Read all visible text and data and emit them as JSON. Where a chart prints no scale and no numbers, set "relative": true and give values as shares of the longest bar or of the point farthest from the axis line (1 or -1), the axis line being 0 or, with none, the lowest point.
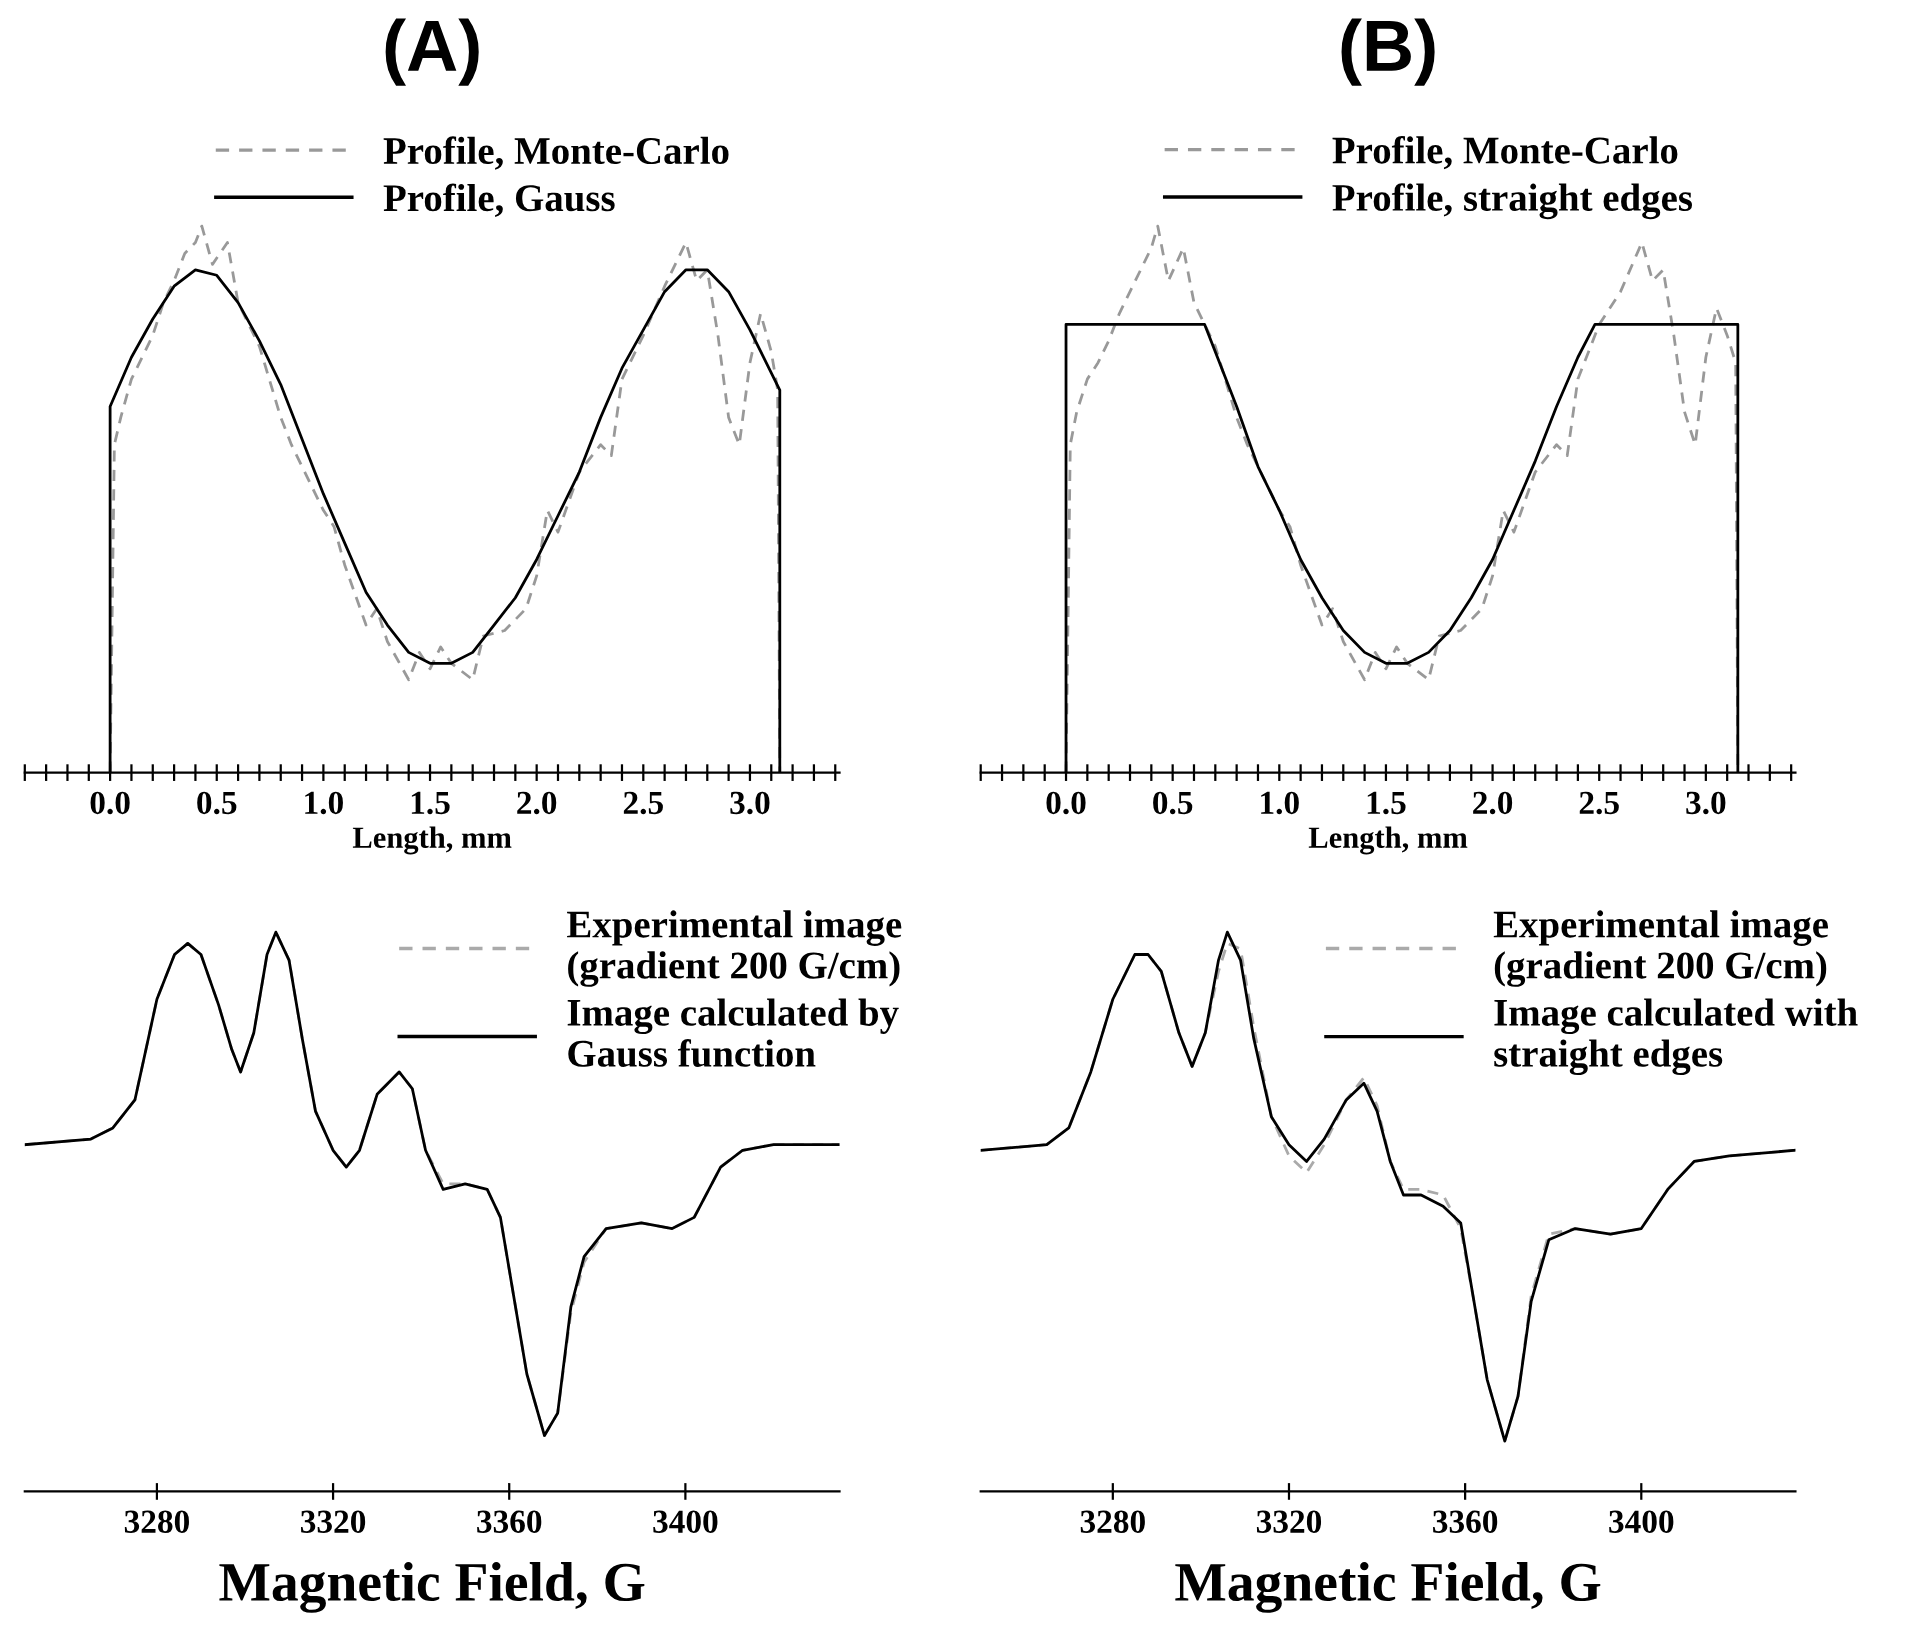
{
  "chart_data": [
    {
      "type": "line",
      "title": "(A)",
      "xlabel": "Length, mm",
      "relative": true,
      "tick_labels": "x",
      "legend": "top",
      "xlim": [
        -0.4,
        3.42
      ],
      "xticks": [
        {
          "value": -0.4,
          "label": null
        },
        {
          "value": -0.3,
          "label": null
        },
        {
          "value": -0.2,
          "label": null
        },
        {
          "value": -0.1,
          "label": null
        },
        {
          "value": 0,
          "label": "0.0"
        },
        {
          "value": 0.1,
          "label": null
        },
        {
          "value": 0.2,
          "label": null
        },
        {
          "value": 0.3,
          "label": null
        },
        {
          "value": 0.4,
          "label": null
        },
        {
          "value": 0.5,
          "label": "0.5"
        },
        {
          "value": 0.6,
          "label": null
        },
        {
          "value": 0.7,
          "label": null
        },
        {
          "value": 0.8,
          "label": null
        },
        {
          "value": 0.9,
          "label": null
        },
        {
          "value": 1.0,
          "label": "1.0"
        },
        {
          "value": 1.1,
          "label": null
        },
        {
          "value": 1.2,
          "label": null
        },
        {
          "value": 1.3,
          "label": null
        },
        {
          "value": 1.4,
          "label": null
        },
        {
          "value": 1.5,
          "label": "1.5"
        },
        {
          "value": 1.6,
          "label": null
        },
        {
          "value": 1.7,
          "label": null
        },
        {
          "value": 1.8,
          "label": null
        },
        {
          "value": 1.9,
          "label": null
        },
        {
          "value": 2.0,
          "label": "2.0"
        },
        {
          "value": 2.1,
          "label": null
        },
        {
          "value": 2.2,
          "label": null
        },
        {
          "value": 2.3,
          "label": null
        },
        {
          "value": 2.4,
          "label": null
        },
        {
          "value": 2.5,
          "label": "2.5"
        },
        {
          "value": 2.6,
          "label": null
        },
        {
          "value": 2.7,
          "label": null
        },
        {
          "value": 2.8,
          "label": null
        },
        {
          "value": 2.9,
          "label": null
        },
        {
          "value": 3.0,
          "label": "3.0"
        },
        {
          "value": 3.1,
          "label": null
        },
        {
          "value": 3.2,
          "label": null
        },
        {
          "value": 3.3,
          "label": null
        },
        {
          "value": 3.4,
          "label": null
        }
      ],
      "series": [
        {
          "name": "Profile, Monte-Carlo",
          "color": "#999999",
          "line_style": "dashed",
          "x": [
            0,
            0.02,
            0.05,
            0.1,
            0.15,
            0.2,
            0.25,
            0.3,
            0.35,
            0.4,
            0.43,
            0.48,
            0.55,
            0.6,
            0.7,
            0.8,
            0.85,
            0.9,
            1.0,
            1.05,
            1.1,
            1.2,
            1.25,
            1.3,
            1.4,
            1.45,
            1.5,
            1.55,
            1.6,
            1.7,
            1.75,
            1.85,
            1.95,
            2.0,
            2.05,
            2.1,
            2.2,
            2.3,
            2.35,
            2.4,
            2.5,
            2.6,
            2.7,
            2.75,
            2.8,
            2.85,
            2.9,
            2.95,
            3.0,
            3.05,
            3.1,
            3.13,
            3.14
          ],
          "values": [
            0,
            0.6,
            0.65,
            0.72,
            0.76,
            0.8,
            0.86,
            0.9,
            0.95,
            0.97,
            1.0,
            0.93,
            0.97,
            0.86,
            0.78,
            0.65,
            0.6,
            0.56,
            0.48,
            0.45,
            0.38,
            0.27,
            0.3,
            0.24,
            0.17,
            0.22,
            0.19,
            0.23,
            0.2,
            0.17,
            0.25,
            0.26,
            0.3,
            0.36,
            0.48,
            0.44,
            0.55,
            0.6,
            0.58,
            0.72,
            0.8,
            0.89,
            0.97,
            0.9,
            0.92,
            0.8,
            0.65,
            0.6,
            0.75,
            0.84,
            0.77,
            0.7,
            0
          ]
        },
        {
          "name": "Profile, Gauss",
          "color": "#000000",
          "line_style": "solid",
          "x": [
            0,
            0,
            0.1,
            0.2,
            0.3,
            0.4,
            0.5,
            0.6,
            0.7,
            0.8,
            0.9,
            1.0,
            1.1,
            1.2,
            1.3,
            1.4,
            1.5,
            1.6,
            1.7,
            1.8,
            1.9,
            2.0,
            2.1,
            2.2,
            2.3,
            2.4,
            2.5,
            2.6,
            2.7,
            2.8,
            2.9,
            3.0,
            3.14,
            3.14
          ],
          "values": [
            0,
            0.67,
            0.76,
            0.83,
            0.89,
            0.92,
            0.91,
            0.86,
            0.79,
            0.71,
            0.61,
            0.51,
            0.42,
            0.33,
            0.27,
            0.22,
            0.2,
            0.2,
            0.22,
            0.27,
            0.32,
            0.39,
            0.47,
            0.55,
            0.65,
            0.74,
            0.81,
            0.88,
            0.92,
            0.92,
            0.88,
            0.81,
            0.7,
            0
          ]
        }
      ]
    },
    {
      "type": "line",
      "title": "(B)",
      "xlabel": "Length, mm",
      "relative": true,
      "tick_labels": "x",
      "legend": "top",
      "xlim": [
        -0.4,
        3.42
      ],
      "xticks": [
        {
          "value": -0.4,
          "label": null
        },
        {
          "value": -0.3,
          "label": null
        },
        {
          "value": -0.2,
          "label": null
        },
        {
          "value": -0.1,
          "label": null
        },
        {
          "value": 0,
          "label": "0.0"
        },
        {
          "value": 0.1,
          "label": null
        },
        {
          "value": 0.2,
          "label": null
        },
        {
          "value": 0.3,
          "label": null
        },
        {
          "value": 0.4,
          "label": null
        },
        {
          "value": 0.5,
          "label": "0.5"
        },
        {
          "value": 0.6,
          "label": null
        },
        {
          "value": 0.7,
          "label": null
        },
        {
          "value": 0.8,
          "label": null
        },
        {
          "value": 0.9,
          "label": null
        },
        {
          "value": 1.0,
          "label": "1.0"
        },
        {
          "value": 1.1,
          "label": null
        },
        {
          "value": 1.2,
          "label": null
        },
        {
          "value": 1.3,
          "label": null
        },
        {
          "value": 1.4,
          "label": null
        },
        {
          "value": 1.5,
          "label": "1.5"
        },
        {
          "value": 1.6,
          "label": null
        },
        {
          "value": 1.7,
          "label": null
        },
        {
          "value": 1.8,
          "label": null
        },
        {
          "value": 1.9,
          "label": null
        },
        {
          "value": 2.0,
          "label": "2.0"
        },
        {
          "value": 2.1,
          "label": null
        },
        {
          "value": 2.2,
          "label": null
        },
        {
          "value": 2.3,
          "label": null
        },
        {
          "value": 2.4,
          "label": null
        },
        {
          "value": 2.5,
          "label": "2.5"
        },
        {
          "value": 2.6,
          "label": null
        },
        {
          "value": 2.7,
          "label": null
        },
        {
          "value": 2.8,
          "label": null
        },
        {
          "value": 2.9,
          "label": null
        },
        {
          "value": 3.0,
          "label": "3.0"
        },
        {
          "value": 3.1,
          "label": null
        },
        {
          "value": 3.2,
          "label": null
        },
        {
          "value": 3.3,
          "label": null
        },
        {
          "value": 3.4,
          "label": null
        }
      ],
      "series": [
        {
          "name": "Profile, Monte-Carlo",
          "color": "#999999",
          "line_style": "dashed",
          "x": [
            0,
            0.02,
            0.05,
            0.1,
            0.15,
            0.2,
            0.25,
            0.3,
            0.35,
            0.4,
            0.43,
            0.48,
            0.55,
            0.6,
            0.7,
            0.8,
            0.85,
            0.9,
            1.0,
            1.05,
            1.1,
            1.2,
            1.25,
            1.3,
            1.4,
            1.45,
            1.5,
            1.55,
            1.6,
            1.7,
            1.75,
            1.85,
            1.95,
            2.0,
            2.05,
            2.1,
            2.2,
            2.3,
            2.35,
            2.4,
            2.5,
            2.6,
            2.7,
            2.75,
            2.8,
            2.85,
            2.9,
            2.95,
            3.0,
            3.05,
            3.1,
            3.14,
            3.15
          ],
          "values": [
            0,
            0.6,
            0.66,
            0.72,
            0.75,
            0.79,
            0.84,
            0.88,
            0.92,
            0.96,
            1.0,
            0.9,
            0.96,
            0.86,
            0.78,
            0.65,
            0.6,
            0.56,
            0.48,
            0.45,
            0.38,
            0.27,
            0.3,
            0.24,
            0.17,
            0.22,
            0.19,
            0.23,
            0.2,
            0.17,
            0.25,
            0.26,
            0.3,
            0.36,
            0.48,
            0.44,
            0.55,
            0.6,
            0.58,
            0.72,
            0.82,
            0.88,
            0.97,
            0.9,
            0.92,
            0.8,
            0.66,
            0.6,
            0.76,
            0.85,
            0.8,
            0.75,
            0
          ]
        },
        {
          "name": "Profile, straight edges",
          "color": "#000000",
          "line_style": "solid",
          "x": [
            0,
            0,
            0.65,
            0.8,
            0.9,
            1.0,
            1.1,
            1.2,
            1.3,
            1.4,
            1.5,
            1.6,
            1.7,
            1.8,
            1.9,
            2.0,
            2.1,
            2.2,
            2.3,
            2.4,
            2.48,
            3.15,
            3.15
          ],
          "values": [
            0,
            0.82,
            0.82,
            0.67,
            0.56,
            0.48,
            0.39,
            0.32,
            0.26,
            0.22,
            0.2,
            0.2,
            0.22,
            0.26,
            0.32,
            0.39,
            0.48,
            0.57,
            0.67,
            0.76,
            0.82,
            0.82,
            0
          ]
        }
      ]
    },
    {
      "type": "line",
      "xlabel": "Magnetic Field, G",
      "relative": true,
      "tick_labels": "x",
      "legend": "top right",
      "xlim": [
        3250,
        3435
      ],
      "xticks": [
        3280,
        3320,
        3360,
        3400
      ],
      "series": [
        {
          "name": "Experimental image\n(gradient 200 G/cm)",
          "color": "#aaaaaa",
          "line_style": "dashed",
          "x": [
            3250,
            3265,
            3270,
            3275,
            3280,
            3284,
            3287,
            3290,
            3294,
            3297,
            3299,
            3302,
            3305,
            3307,
            3310,
            3313,
            3316,
            3320,
            3323,
            3326,
            3330,
            3335,
            3338,
            3341,
            3345,
            3350,
            3355,
            3358,
            3361,
            3364,
            3368,
            3371,
            3374,
            3377,
            3382,
            3390,
            3397,
            3402,
            3408,
            3413,
            3420,
            3435
          ],
          "values": [
            0.62,
            0.63,
            0.65,
            0.7,
            0.88,
            0.96,
            0.98,
            0.96,
            0.87,
            0.79,
            0.75,
            0.82,
            0.96,
            1.0,
            0.95,
            0.81,
            0.68,
            0.61,
            0.58,
            0.61,
            0.71,
            0.75,
            0.72,
            0.61,
            0.55,
            0.55,
            0.54,
            0.49,
            0.35,
            0.21,
            0.1,
            0.14,
            0.32,
            0.41,
            0.47,
            0.48,
            0.47,
            0.49,
            0.58,
            0.61,
            0.62,
            0.62
          ]
        },
        {
          "name": "Image calculated by\nGauss function",
          "color": "#000000",
          "line_style": "solid",
          "x": [
            3250,
            3265,
            3270,
            3275,
            3280,
            3284,
            3287,
            3290,
            3294,
            3297,
            3299,
            3302,
            3305,
            3307,
            3310,
            3313,
            3316,
            3320,
            3323,
            3326,
            3330,
            3335,
            3338,
            3341,
            3345,
            3350,
            3355,
            3358,
            3361,
            3364,
            3368,
            3371,
            3374,
            3377,
            3382,
            3390,
            3397,
            3402,
            3408,
            3413,
            3420,
            3435
          ],
          "values": [
            0.62,
            0.63,
            0.65,
            0.7,
            0.88,
            0.96,
            0.98,
            0.96,
            0.87,
            0.79,
            0.75,
            0.82,
            0.96,
            1.0,
            0.95,
            0.81,
            0.68,
            0.61,
            0.58,
            0.61,
            0.71,
            0.75,
            0.72,
            0.61,
            0.54,
            0.55,
            0.54,
            0.49,
            0.35,
            0.21,
            0.1,
            0.14,
            0.33,
            0.42,
            0.47,
            0.48,
            0.47,
            0.49,
            0.58,
            0.61,
            0.62,
            0.62
          ]
        }
      ]
    },
    {
      "type": "line",
      "xlabel": "Magnetic Field, G",
      "relative": true,
      "tick_labels": "x",
      "legend": "top right",
      "xlim": [
        3250,
        3435
      ],
      "xticks": [
        3280,
        3320,
        3360,
        3400
      ],
      "series": [
        {
          "name": "Experimental image\n(gradient 200 G/cm)",
          "color": "#aaaaaa",
          "line_style": "dashed",
          "x": [
            3250,
            3265,
            3270,
            3275,
            3280,
            3285,
            3288,
            3291,
            3295,
            3298,
            3301,
            3304,
            3306,
            3309,
            3312,
            3316,
            3320,
            3324,
            3328,
            3333,
            3337,
            3340,
            3343,
            3346,
            3350,
            3355,
            3359,
            3362,
            3365,
            3369,
            3372,
            3375,
            3379,
            3385,
            3393,
            3400,
            3406,
            3412,
            3420,
            3435
          ],
          "values": [
            0.61,
            0.62,
            0.65,
            0.75,
            0.88,
            0.96,
            0.96,
            0.93,
            0.82,
            0.76,
            0.82,
            0.93,
            0.98,
            0.97,
            0.83,
            0.67,
            0.6,
            0.57,
            0.62,
            0.7,
            0.74,
            0.69,
            0.59,
            0.54,
            0.54,
            0.53,
            0.47,
            0.34,
            0.2,
            0.09,
            0.17,
            0.35,
            0.46,
            0.47,
            0.46,
            0.47,
            0.54,
            0.59,
            0.6,
            0.61
          ]
        },
        {
          "name": "Image calculated with\nstraight edges",
          "color": "#000000",
          "line_style": "solid",
          "x": [
            3250,
            3265,
            3270,
            3275,
            3280,
            3285,
            3288,
            3291,
            3295,
            3298,
            3301,
            3304,
            3306,
            3309,
            3312,
            3316,
            3320,
            3324,
            3328,
            3333,
            3337,
            3340,
            3343,
            3346,
            3350,
            3355,
            3359,
            3362,
            3365,
            3369,
            3372,
            3375,
            3379,
            3385,
            3393,
            3400,
            3406,
            3412,
            3420,
            3435
          ],
          "values": [
            0.61,
            0.62,
            0.65,
            0.75,
            0.88,
            0.96,
            0.96,
            0.93,
            0.82,
            0.76,
            0.82,
            0.95,
            1.0,
            0.95,
            0.81,
            0.67,
            0.62,
            0.59,
            0.63,
            0.7,
            0.73,
            0.68,
            0.59,
            0.53,
            0.53,
            0.51,
            0.48,
            0.34,
            0.2,
            0.09,
            0.17,
            0.34,
            0.45,
            0.47,
            0.46,
            0.47,
            0.54,
            0.59,
            0.6,
            0.61
          ]
        }
      ]
    }
  ]
}
